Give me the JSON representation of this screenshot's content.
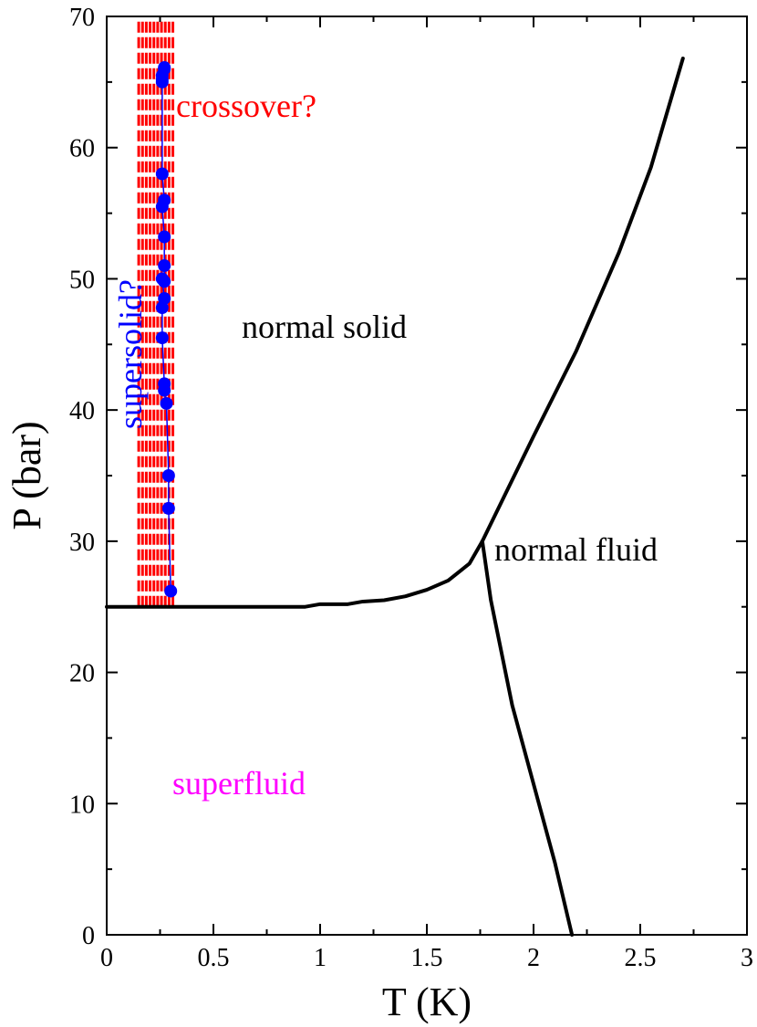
{
  "chart_data": {
    "type": "line",
    "xlabel": "T (K)",
    "ylabel": "P (bar)",
    "xlim": [
      0,
      3
    ],
    "ylim": [
      0,
      70
    ],
    "x_ticks": [
      {
        "value": 0,
        "label": "0"
      },
      {
        "value": 0.5,
        "label": "0.5"
      },
      {
        "value": 1,
        "label": "1"
      },
      {
        "value": 1.5,
        "label": "1.5"
      },
      {
        "value": 2,
        "label": "2"
      },
      {
        "value": 2.5,
        "label": "2.5"
      },
      {
        "value": 3,
        "label": "3"
      }
    ],
    "y_ticks": [
      {
        "value": 0,
        "label": "0"
      },
      {
        "value": 10,
        "label": "10"
      },
      {
        "value": 20,
        "label": "20"
      },
      {
        "value": 30,
        "label": "30"
      },
      {
        "value": 40,
        "label": "40"
      },
      {
        "value": 50,
        "label": "50"
      },
      {
        "value": 60,
        "label": "60"
      },
      {
        "value": 70,
        "label": "70"
      }
    ],
    "grid": false,
    "colors": {
      "phase_lines": "#000000",
      "supersolid": "#0000ff",
      "crossover": "#ff0000",
      "superfluid": "#ff00ff"
    },
    "phase_boundaries": [
      {
        "id": "melting",
        "x": [
          0.0,
          0.5,
          0.93,
          1.0,
          1.13,
          1.2,
          1.3,
          1.4,
          1.5,
          1.6,
          1.7,
          1.76
        ],
        "y": [
          25.0,
          25.0,
          25.0,
          25.2,
          25.2,
          25.4,
          25.5,
          25.8,
          26.3,
          27.0,
          28.3,
          30.0
        ]
      },
      {
        "id": "lambda",
        "x": [
          1.76,
          1.8,
          1.9,
          2.0,
          2.1,
          2.18
        ],
        "y": [
          30.0,
          25.5,
          17.5,
          11.5,
          5.5,
          0.0
        ]
      },
      {
        "id": "solid-fluid",
        "x": [
          1.76,
          1.82,
          2.0,
          2.2,
          2.4,
          2.55,
          2.7
        ],
        "y": [
          30.0,
          32.0,
          38.0,
          44.5,
          52.0,
          58.5,
          66.8
        ]
      }
    ],
    "series": [
      {
        "name": "supersolid?",
        "x": [
          0.3,
          0.29,
          0.29,
          0.28,
          0.27,
          0.27,
          0.26,
          0.26,
          0.27,
          0.26,
          0.27,
          0.27,
          0.27,
          0.26,
          0.27,
          0.26,
          0.26,
          0.26,
          0.27,
          0.26,
          0.27
        ],
        "y": [
          26.2,
          32.5,
          35.0,
          40.5,
          41.5,
          42.0,
          45.5,
          47.8,
          48.5,
          50.0,
          49.8,
          51.0,
          53.2,
          55.5,
          56.0,
          58.0,
          65.0,
          65.2,
          66.0,
          65.5,
          66.1
        ]
      }
    ],
    "crossover_band": {
      "x_min": 0.15,
      "x_max": 0.31,
      "y_min": 25.0,
      "y_max": 70,
      "count": 10
    },
    "annotations": [
      {
        "id": "crossover",
        "text": "crossover?",
        "color": "#ff0000"
      },
      {
        "id": "supersolid",
        "text": "supersolid?",
        "color": "#0000ff"
      },
      {
        "id": "normal-solid",
        "text": "normal solid",
        "color": "#000000"
      },
      {
        "id": "normal-fluid",
        "text": "normal fluid",
        "color": "#000000"
      },
      {
        "id": "superfluid",
        "text": "superfluid",
        "color": "#ff00ff"
      }
    ]
  }
}
